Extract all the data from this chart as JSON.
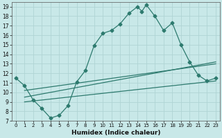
{
  "xlabel": "Humidex (Indice chaleur)",
  "ylabel": "",
  "bg_color": "#c8e8e8",
  "grid_color": "#b0d4d4",
  "line_color": "#2d7a6e",
  "xlim": [
    -0.5,
    23.5
  ],
  "ylim": [
    7,
    19.5
  ],
  "xticks": [
    0,
    1,
    2,
    3,
    4,
    5,
    6,
    7,
    8,
    9,
    10,
    11,
    12,
    13,
    14,
    15,
    16,
    17,
    18,
    19,
    20,
    21,
    22,
    23
  ],
  "yticks": [
    7,
    8,
    9,
    10,
    11,
    12,
    13,
    14,
    15,
    16,
    17,
    18,
    19
  ],
  "line1_x": [
    0,
    1,
    2,
    3,
    4,
    5,
    6,
    7,
    8,
    9,
    10,
    11,
    12,
    13,
    14,
    14.5,
    15,
    16,
    17,
    18,
    19,
    20,
    21,
    22,
    23
  ],
  "line1_y": [
    11.5,
    10.7,
    9.2,
    8.3,
    7.3,
    7.6,
    8.6,
    11.1,
    12.3,
    14.9,
    16.2,
    16.5,
    17.2,
    18.3,
    19.0,
    18.5,
    19.2,
    18.0,
    16.5,
    17.3,
    15.0,
    13.2,
    11.8,
    11.2,
    11.5
  ],
  "line2_x": [
    1,
    23
  ],
  "line2_y": [
    9.5,
    13.2
  ],
  "line3_x": [
    1,
    23
  ],
  "line3_y": [
    10.2,
    13.0
  ],
  "line4_x": [
    1,
    23
  ],
  "line4_y": [
    9.0,
    11.2
  ]
}
